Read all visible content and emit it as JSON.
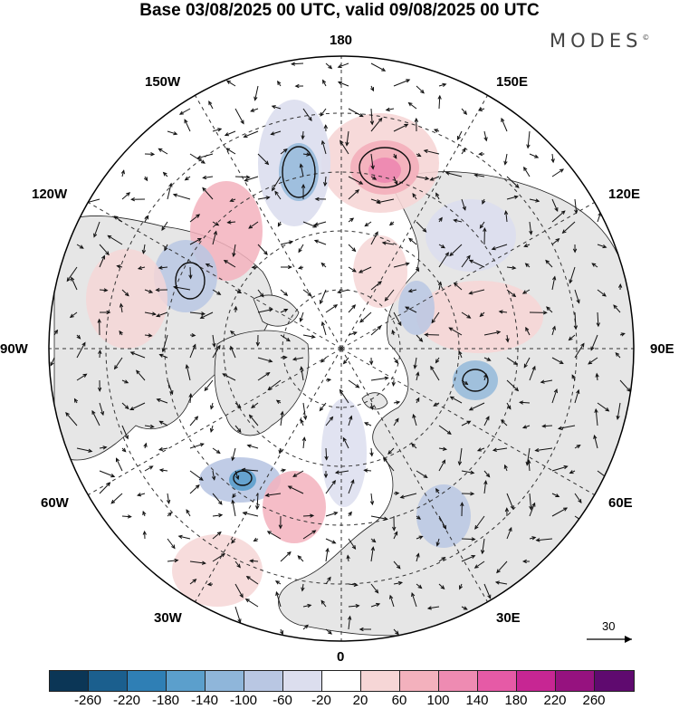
{
  "title": "Base 03/08/2025 00 UTC, valid 09/08/2025 00 UTC",
  "brand": "MODES",
  "brand_mark": "©",
  "longitude_labels": {
    "top": "180",
    "bottom": "0",
    "left": "90W",
    "right": "90E",
    "upper_left_1": "150W",
    "upper_left_2": "120W",
    "upper_right_1": "150E",
    "upper_right_2": "120E",
    "lower_left_1": "60W",
    "lower_left_2": "30W",
    "lower_right_1": "60E",
    "lower_right_2": "30E"
  },
  "reference_vector": {
    "label": "30"
  },
  "colorbar": {
    "colors": [
      "#0b3656",
      "#1b5f8e",
      "#2f7fb5",
      "#5b9fcc",
      "#8fb6da",
      "#b9c7e3",
      "#dcdeee",
      "#ffffff",
      "#f6d6d6",
      "#f3b1bd",
      "#ee8bb2",
      "#e65aa6",
      "#c72693",
      "#96127f",
      "#5f0a6f"
    ],
    "tick_labels": [
      "-260",
      "-220",
      "-180",
      "-140",
      "-100",
      "-60",
      "-20",
      "20",
      "60",
      "100",
      "140",
      "180",
      "220",
      "260"
    ]
  },
  "map": {
    "projection": "north-polar-stereographic",
    "land_color": "#e6e6e6",
    "background_color": "#ffffff"
  }
}
